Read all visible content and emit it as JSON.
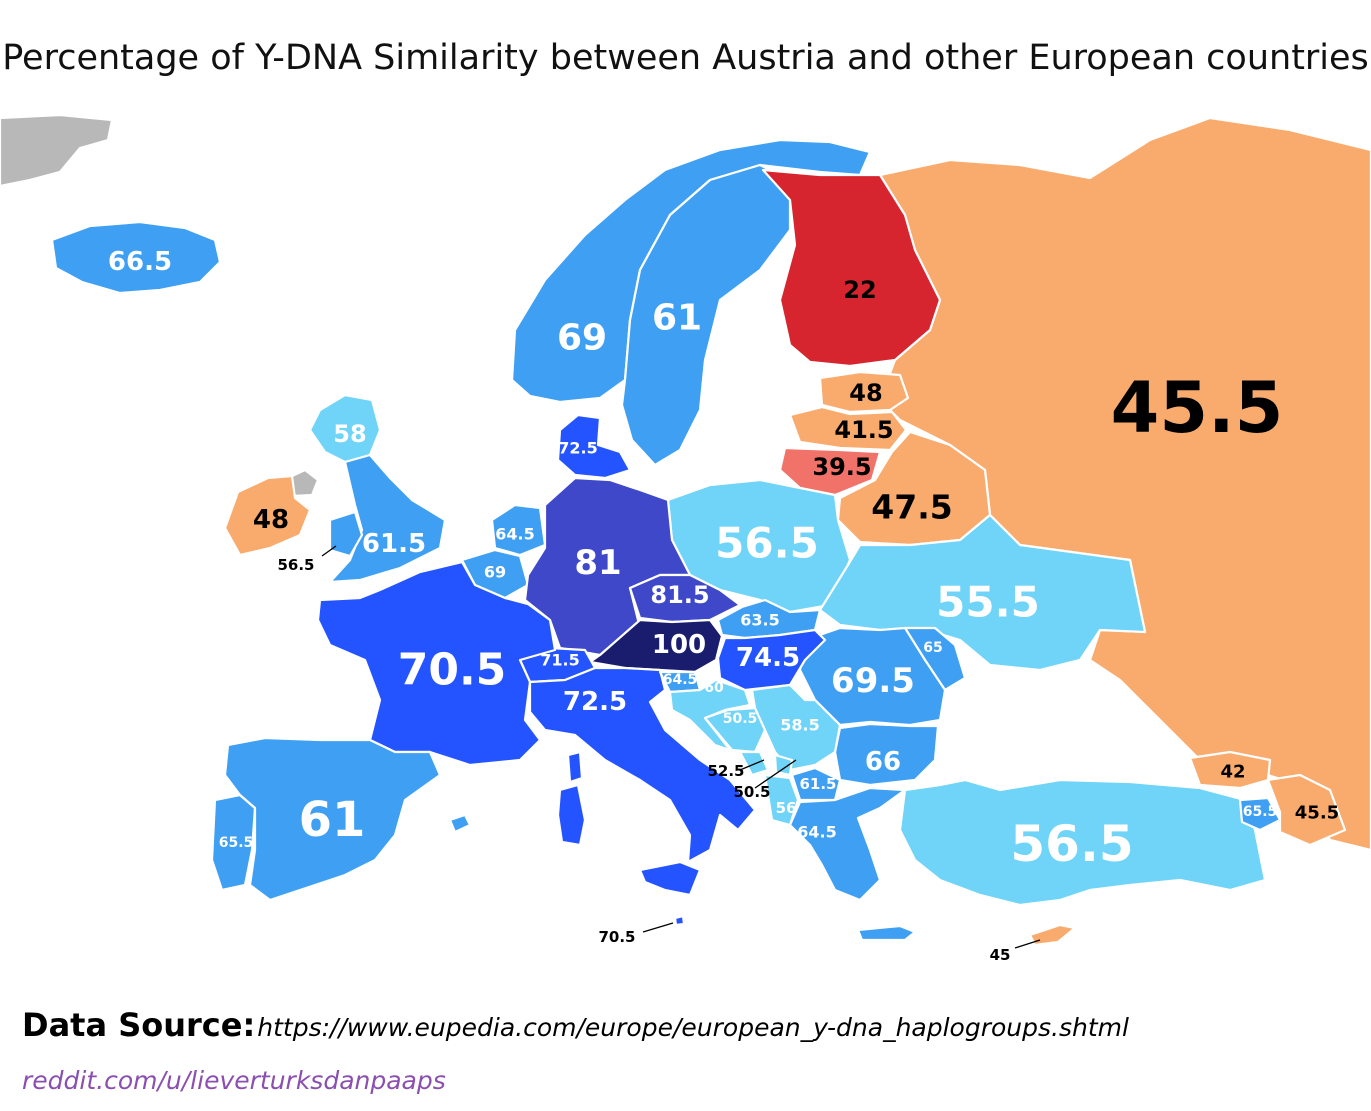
{
  "title": "Percentage of Y-DNA Similarity between Austria and other European countries",
  "source": {
    "label": "Data Source:",
    "url": "https://www.eupedia.com/europe/european_y-dna_haplogroups.shtml"
  },
  "credit": "reddit.com/u/lieverturksdanpaaps",
  "colors": {
    "no_data": "#b8b8b8",
    "red": "#d72530",
    "salmon": "#f07268",
    "orange": "#f9ab6e",
    "light_blue": "#6fd4f7",
    "mid_blue": "#3fa0f3",
    "bright_blue": "#2454ff",
    "indigo": "#3f48c8",
    "navy": "#1a1d6e"
  },
  "regions": [
    {
      "value": "66.5",
      "color": "mid_blue"
    },
    {
      "value": "69",
      "color": "mid_blue"
    },
    {
      "value": "61",
      "color": "mid_blue"
    },
    {
      "value": "22",
      "color": "red"
    },
    {
      "value": "45.5",
      "color": "orange"
    },
    {
      "value": "48",
      "color": "orange"
    },
    {
      "value": "41.5",
      "color": "orange"
    },
    {
      "value": "39.5",
      "color": "salmon"
    },
    {
      "value": "47.5",
      "color": "orange"
    },
    {
      "value": "58",
      "color": "light_blue"
    },
    {
      "value": "48",
      "color": "orange"
    },
    {
      "value": "61.5",
      "color": "mid_blue"
    },
    {
      "value": "56.5",
      "color": "mid_blue"
    },
    {
      "value": "72.5",
      "color": "bright_blue"
    },
    {
      "value": "64.5",
      "color": "mid_blue"
    },
    {
      "value": "69",
      "color": "mid_blue"
    },
    {
      "value": "81",
      "color": "indigo"
    },
    {
      "value": "56.5",
      "color": "light_blue"
    },
    {
      "value": "81.5",
      "color": "indigo"
    },
    {
      "value": "100",
      "color": "navy"
    },
    {
      "value": "63.5",
      "color": "mid_blue"
    },
    {
      "value": "74.5",
      "color": "bright_blue"
    },
    {
      "value": "55.5",
      "color": "light_blue"
    },
    {
      "value": "65",
      "color": "mid_blue"
    },
    {
      "value": "69.5",
      "color": "mid_blue"
    },
    {
      "value": "70.5",
      "color": "bright_blue"
    },
    {
      "value": "71.5",
      "color": "bright_blue"
    },
    {
      "value": "72.5",
      "color": "bright_blue"
    },
    {
      "value": "64.5",
      "color": "mid_blue"
    },
    {
      "value": "60",
      "color": "light_blue"
    },
    {
      "value": "50.5",
      "color": "light_blue"
    },
    {
      "value": "58.5",
      "color": "light_blue"
    },
    {
      "value": "52.5",
      "color": "light_blue"
    },
    {
      "value": "50.5",
      "color": "light_blue"
    },
    {
      "value": "66",
      "color": "mid_blue"
    },
    {
      "value": "61.5",
      "color": "mid_blue"
    },
    {
      "value": "56",
      "color": "light_blue"
    },
    {
      "value": "64.5",
      "color": "mid_blue"
    },
    {
      "value": "61",
      "color": "mid_blue"
    },
    {
      "value": "65.5",
      "color": "mid_blue"
    },
    {
      "value": "70.5",
      "color": "bright_blue"
    },
    {
      "value": "56.5",
      "color": "light_blue"
    },
    {
      "value": "42",
      "color": "orange"
    },
    {
      "value": "65.5",
      "color": "mid_blue"
    },
    {
      "value": "45.5",
      "color": "orange"
    },
    {
      "value": "45",
      "color": "orange"
    }
  ]
}
